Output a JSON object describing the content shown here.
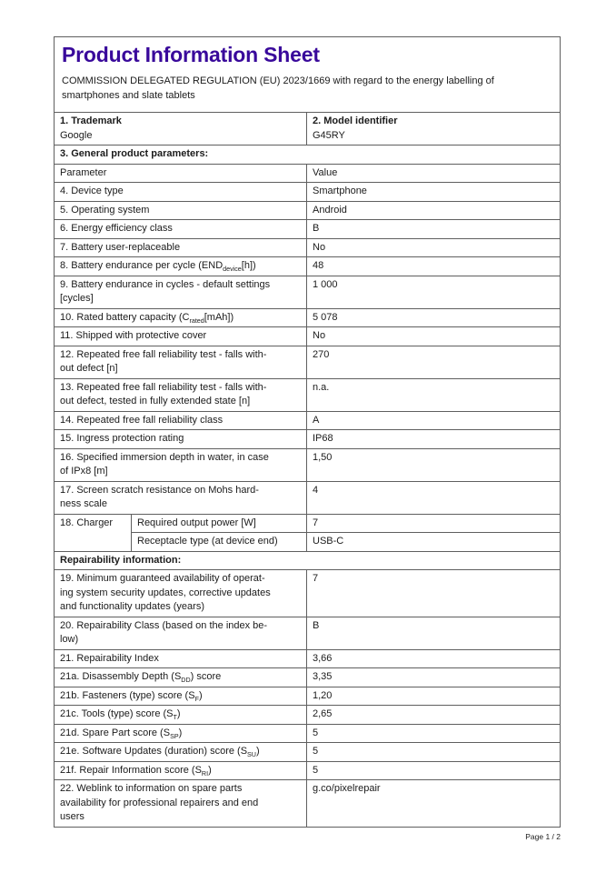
{
  "page": {
    "title": "Product Information Sheet",
    "title_color": "#39099B",
    "subtitle": "COMMISSION DELEGATED REGULATION (EU) 2023/1669 with regard to the energy labelling of\nsmartphones and slate tablets",
    "footer": "Page 1 / 2"
  },
  "table": {
    "rows": [
      {
        "type": "two",
        "cells": [
          {
            "title": "1. Trademark",
            "value": "Google"
          },
          {
            "title": "2. Model identifier",
            "value": "G45RY"
          }
        ]
      },
      {
        "type": "section",
        "text": "3. General product parameters:"
      },
      {
        "type": "kv",
        "label": "Parameter",
        "value": "Value"
      },
      {
        "type": "kv",
        "label": "4. Device type",
        "value": "Smartphone"
      },
      {
        "type": "kv",
        "label": "5. Operating system",
        "value": "Android"
      },
      {
        "type": "kv",
        "label": "6. Energy efficiency class",
        "value": "B"
      },
      {
        "type": "kv",
        "label": "7. Battery user-replaceable",
        "value": "No"
      },
      {
        "type": "kv",
        "label": "8. Battery endurance per cycle (END~device~[h])",
        "value": "48"
      },
      {
        "type": "kv",
        "label": "9. Battery endurance in cycles - default settings\n[cycles]",
        "value": "1 000"
      },
      {
        "type": "kv",
        "label": "10. Rated battery capacity (C~rated~[mAh])",
        "value": "5 078"
      },
      {
        "type": "kv",
        "label": "11. Shipped with protective cover",
        "value": "No"
      },
      {
        "type": "kv",
        "label": "12. Repeated free fall reliability test - falls with-\nout defect [n]",
        "value": "270"
      },
      {
        "type": "kv",
        "label": "13. Repeated free fall reliability test - falls with-\nout defect, tested in fully extended state [n]",
        "value": "n.a."
      },
      {
        "type": "kv",
        "label": "14. Repeated free fall reliability class",
        "value": "A"
      },
      {
        "type": "kv",
        "label": "15. Ingress protection rating",
        "value": "IP68"
      },
      {
        "type": "kv",
        "label": "16. Specified immersion depth in water, in case\nof IPx8 [m]",
        "value": "1,50"
      },
      {
        "type": "kv",
        "label": "17. Screen scratch resistance on Mohs hard-\nness scale",
        "value": "4"
      },
      {
        "type": "charger",
        "label": "18. Charger",
        "subrows": [
          {
            "label": "Required output power [W]",
            "value": "7"
          },
          {
            "label": "Receptacle type (at device end)",
            "value": "USB-C"
          }
        ]
      },
      {
        "type": "section",
        "text": "Repairability information:"
      },
      {
        "type": "kv",
        "label": "19. Minimum guaranteed availability of operat-\ning system security updates, corrective updates\nand functionality updates (years)",
        "value": "7"
      },
      {
        "type": "kv",
        "label": "20. Repairability Class (based on the index be-\nlow)",
        "value": "B"
      },
      {
        "type": "kv",
        "label": "21. Repairability Index",
        "value": "3,66"
      },
      {
        "type": "kv",
        "indent": true,
        "label": "21a. Disassembly Depth (S~DD~) score",
        "value": "3,35"
      },
      {
        "type": "kv",
        "indent": true,
        "label": "21b. Fasteners (type) score (S~F~)",
        "value": "1,20"
      },
      {
        "type": "kv",
        "indent": true,
        "label": "21c. Tools (type) score (S~T~)",
        "value": "2,65"
      },
      {
        "type": "kv",
        "indent": true,
        "label": "21d. Spare Part score (S~SP~)",
        "value": "5"
      },
      {
        "type": "kv",
        "indent": true,
        "label": "21e. Software Updates (duration) score (S~SU~)",
        "value": "5"
      },
      {
        "type": "kv",
        "indent": true,
        "label": "21f. Repair Information score (S~RI~)",
        "value": "5"
      },
      {
        "type": "kv",
        "label": "22. Weblink to information on spare parts\navailability for professional repairers and end\nusers",
        "value": "g.co/pixelrepair",
        "value_pad": true
      }
    ]
  }
}
